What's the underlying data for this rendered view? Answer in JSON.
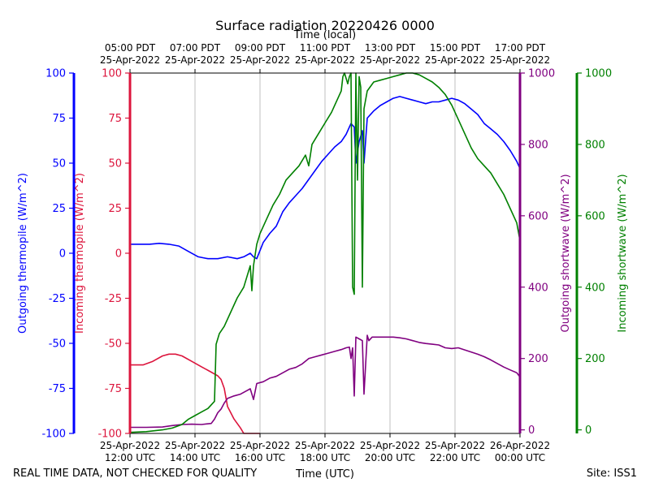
{
  "chart_data": {
    "type": "line",
    "title": "Surface radiation 20220426 0000",
    "xlabel_bottom": "Time (UTC)",
    "xlabel_top": "Time (local)",
    "footer_left": "REAL TIME DATA, NOT CHECKED FOR QUALITY",
    "footer_right": "Site: ISS1",
    "xlim": [
      12,
      24
    ],
    "grid": "vertical",
    "x_ticks_bottom": [
      {
        "x": 12,
        "l1": "25-Apr-2022",
        "l2": "12:00 UTC"
      },
      {
        "x": 14,
        "l1": "25-Apr-2022",
        "l2": "14:00 UTC"
      },
      {
        "x": 16,
        "l1": "25-Apr-2022",
        "l2": "16:00 UTC"
      },
      {
        "x": 18,
        "l1": "25-Apr-2022",
        "l2": "18:00 UTC"
      },
      {
        "x": 20,
        "l1": "25-Apr-2022",
        "l2": "20:00 UTC"
      },
      {
        "x": 22,
        "l1": "25-Apr-2022",
        "l2": "22:00 UTC"
      },
      {
        "x": 24,
        "l1": "26-Apr-2022",
        "l2": "00:00 UTC"
      }
    ],
    "x_ticks_top": [
      {
        "x": 12,
        "l1": "05:00 PDT",
        "l2": "25-Apr-2022"
      },
      {
        "x": 14,
        "l1": "07:00 PDT",
        "l2": "25-Apr-2022"
      },
      {
        "x": 16,
        "l1": "09:00 PDT",
        "l2": "25-Apr-2022"
      },
      {
        "x": 18,
        "l1": "11:00 PDT",
        "l2": "25-Apr-2022"
      },
      {
        "x": 20,
        "l1": "13:00 PDT",
        "l2": "25-Apr-2022"
      },
      {
        "x": 22,
        "l1": "15:00 PDT",
        "l2": "25-Apr-2022"
      },
      {
        "x": 24,
        "l1": "17:00 PDT",
        "l2": "25-Apr-2022"
      }
    ],
    "axes": {
      "outgoing_thermopile": {
        "label": "Outgoing thermopile (W/m^2)",
        "color": "#0000ff",
        "ylim": [
          -100,
          100
        ],
        "ticks": [
          -100,
          -75,
          -50,
          -25,
          0,
          25,
          50,
          75,
          100
        ]
      },
      "incoming_thermopile": {
        "label": "Incoming thermopile (W/m^2)",
        "color": "#dc143c",
        "ylim": [
          -100,
          100
        ],
        "ticks": [
          -100,
          -75,
          -50,
          -25,
          0,
          25,
          50,
          75,
          100
        ]
      },
      "outgoing_shortwave": {
        "label": "Outgoing shortwave (W/m^2)",
        "color": "#800080",
        "ylim": [
          -10,
          1000
        ],
        "ticks": [
          0,
          200,
          400,
          600,
          800,
          1000
        ]
      },
      "incoming_shortwave": {
        "label": "Incoming shortwave (W/m^2)",
        "color": "#008000",
        "ylim": [
          -10,
          1000
        ],
        "ticks": [
          0,
          200,
          400,
          600,
          800,
          1000
        ]
      }
    },
    "series": [
      {
        "key": "outgoing_thermopile",
        "color": "#0000ff",
        "x": [
          12.0,
          12.3,
          12.6,
          12.9,
          13.2,
          13.5,
          13.8,
          14.1,
          14.4,
          14.7,
          15.0,
          15.3,
          15.5,
          15.7,
          15.8,
          15.9,
          16.1,
          16.3,
          16.5,
          16.7,
          16.9,
          17.1,
          17.3,
          17.5,
          17.7,
          17.9,
          18.1,
          18.3,
          18.5,
          18.65,
          18.75,
          18.8,
          18.9,
          18.95,
          19.05,
          19.15,
          19.2,
          19.3,
          19.4,
          19.5,
          19.7,
          19.9,
          20.1,
          20.3,
          20.5,
          20.7,
          20.9,
          21.1,
          21.3,
          21.5,
          21.7,
          21.9,
          22.1,
          22.3,
          22.5,
          22.7,
          22.9,
          23.1,
          23.3,
          23.5,
          23.7,
          23.9,
          24.0
        ],
        "y": [
          5,
          5,
          5,
          5.5,
          5,
          4,
          1,
          -2,
          -3,
          -3,
          -2,
          -3,
          -2,
          0,
          -2,
          -3,
          6,
          11,
          15,
          23,
          28,
          32,
          36,
          41,
          46,
          51,
          55,
          59,
          62,
          66,
          70,
          72,
          70,
          50,
          62,
          68,
          50,
          75,
          77,
          79,
          82,
          84,
          86,
          87,
          86,
          85,
          84,
          83,
          84,
          84,
          85,
          86,
          85,
          83,
          80,
          77,
          72,
          69,
          66,
          62,
          57,
          51,
          47
        ]
      },
      {
        "key": "incoming_thermopile",
        "color": "#dc143c",
        "x": [
          12.0,
          12.4,
          12.7,
          13.0,
          13.2,
          13.4,
          13.6,
          13.9,
          14.2,
          14.5,
          14.7,
          14.8,
          14.9,
          15.0,
          15.2,
          15.4,
          15.5,
          15.8,
          16.0
        ],
        "y": [
          -62,
          -62,
          -60,
          -57,
          -56,
          -56,
          -57,
          -60,
          -63,
          -66,
          -68,
          -70,
          -75,
          -85,
          -92,
          -97,
          -100,
          -101,
          -101
        ]
      },
      {
        "key": "outgoing_shortwave",
        "color": "#800080",
        "x": [
          12.0,
          12.5,
          13.0,
          13.3,
          13.6,
          13.9,
          14.2,
          14.5,
          14.6,
          14.7,
          14.8,
          14.9,
          15.0,
          15.2,
          15.4,
          15.6,
          15.7,
          15.8,
          15.9,
          16.1,
          16.3,
          16.5,
          16.7,
          16.9,
          17.1,
          17.3,
          17.5,
          17.7,
          17.9,
          18.1,
          18.3,
          18.5,
          18.65,
          18.75,
          18.8,
          18.85,
          18.9,
          18.95,
          19.05,
          19.15,
          19.2,
          19.3,
          19.35,
          19.45,
          19.7,
          19.9,
          20.1,
          20.3,
          20.5,
          20.7,
          20.9,
          21.1,
          21.3,
          21.5,
          21.7,
          21.9,
          22.1,
          22.3,
          22.5,
          22.7,
          22.9,
          23.1,
          23.3,
          23.5,
          23.7,
          23.9,
          24.0
        ],
        "y": [
          7,
          7,
          8,
          12,
          15,
          16,
          15,
          18,
          30,
          48,
          58,
          75,
          88,
          95,
          100,
          110,
          115,
          85,
          130,
          135,
          145,
          150,
          160,
          170,
          175,
          185,
          200,
          205,
          210,
          215,
          220,
          225,
          230,
          232,
          200,
          230,
          95,
          260,
          255,
          250,
          100,
          265,
          250,
          260,
          260,
          260,
          260,
          258,
          255,
          250,
          245,
          242,
          240,
          238,
          230,
          228,
          230,
          224,
          218,
          212,
          205,
          196,
          186,
          176,
          168,
          160,
          148
        ]
      },
      {
        "key": "incoming_shortwave",
        "color": "#008000",
        "x": [
          12.0,
          12.5,
          13.0,
          13.3,
          13.6,
          13.8,
          14.0,
          14.2,
          14.4,
          14.6,
          14.65,
          14.75,
          14.9,
          15.1,
          15.3,
          15.5,
          15.7,
          15.75,
          15.8,
          15.9,
          16.0,
          16.2,
          16.4,
          16.6,
          16.8,
          17.0,
          17.2,
          17.4,
          17.5,
          17.6,
          17.8,
          18.0,
          18.2,
          18.4,
          18.5,
          18.55,
          18.6,
          18.7,
          18.75,
          18.8,
          18.85,
          18.9,
          18.95,
          19.0,
          19.05,
          19.1,
          19.15,
          19.2,
          19.3,
          19.5,
          19.7,
          19.9,
          20.1,
          20.3,
          20.5,
          20.7,
          20.9,
          21.1,
          21.3,
          21.5,
          21.7,
          21.9,
          22.1,
          22.3,
          22.5,
          22.7,
          22.9,
          23.1,
          23.3,
          23.5,
          23.7,
          23.9,
          24.0
        ],
        "y": [
          -7,
          -5,
          0,
          5,
          15,
          30,
          40,
          50,
          60,
          80,
          240,
          270,
          290,
          330,
          370,
          400,
          460,
          390,
          460,
          520,
          550,
          590,
          630,
          660,
          700,
          720,
          740,
          770,
          740,
          800,
          830,
          860,
          890,
          930,
          950,
          990,
          1000,
          970,
          990,
          1000,
          400,
          380,
          1000,
          700,
          990,
          960,
          400,
          900,
          950,
          975,
          980,
          985,
          990,
          995,
          1000,
          1000,
          995,
          985,
          975,
          960,
          940,
          910,
          870,
          830,
          790,
          760,
          740,
          720,
          690,
          660,
          620,
          580,
          530
        ]
      }
    ]
  }
}
